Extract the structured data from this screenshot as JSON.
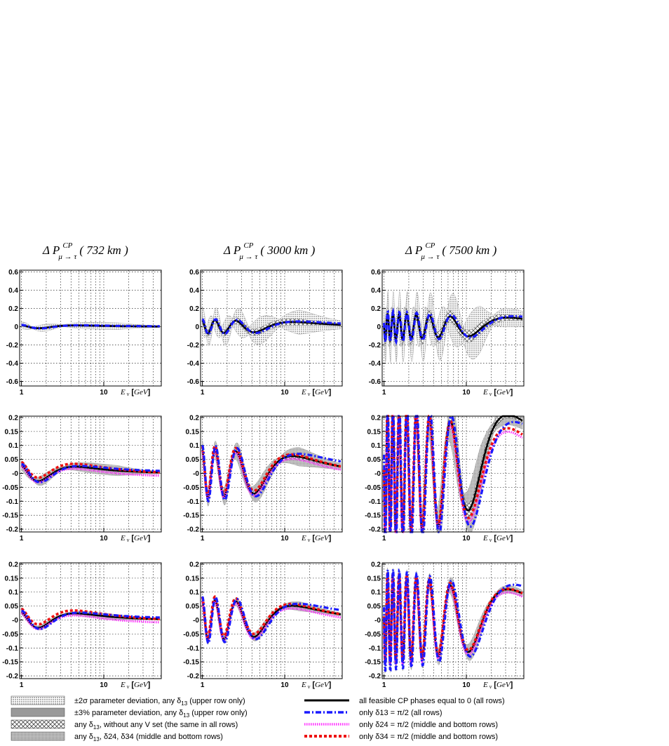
{
  "chart_data": {
    "type": "line",
    "columns": [
      {
        "baseline": "732",
        "unit": "km",
        "title_prefix": "Δ P",
        "title_sup": "CP",
        "title_sub": "μ → τ"
      },
      {
        "baseline": "3000",
        "unit": "km",
        "title_prefix": "Δ P",
        "title_sup": "CP",
        "title_sub": "μ → τ"
      },
      {
        "baseline": "7500",
        "unit": "km",
        "title_prefix": "Δ P",
        "title_sup": "CP",
        "title_sub": "μ → τ"
      }
    ],
    "rows": [
      {
        "ylim": [
          -0.65,
          0.62
        ],
        "yticks": [
          "0.6",
          "0.4",
          "0.2",
          "0",
          "-0.2",
          "-0.4",
          "-0.6"
        ],
        "ytick_values": [
          0.6,
          0.4,
          0.2,
          0,
          -0.2,
          -0.4,
          -0.6
        ]
      },
      {
        "ylim": [
          -0.21,
          0.205
        ],
        "yticks": [
          "0.2",
          "0.15",
          "0.1",
          "0.05",
          "-0",
          "-0.05",
          "-0.1",
          "-0.15",
          "-0.2"
        ],
        "ytick_values": [
          0.2,
          0.15,
          0.1,
          0.05,
          0,
          -0.05,
          -0.1,
          -0.15,
          -0.2
        ]
      },
      {
        "ylim": [
          -0.21,
          0.205
        ],
        "yticks": [
          "0.2",
          "0.15",
          "0.1",
          "0.05",
          "-0",
          "-0.05",
          "-0.1",
          "-0.15",
          "-0.2"
        ],
        "ytick_values": [
          0.2,
          0.15,
          0.1,
          0.05,
          0,
          -0.05,
          -0.1,
          -0.15,
          -0.2
        ]
      }
    ],
    "xaxis": {
      "scale": "log",
      "xlim": [
        0.95,
        50
      ],
      "tick_labels": [
        "1",
        "10"
      ],
      "tick_values": [
        1,
        10
      ],
      "label_main": "E",
      "label_sub": "ν",
      "label_unit": "GeV"
    },
    "grid": true,
    "curve_params": {
      "col_scale": [
        1.2,
        3.2,
        8.0
      ],
      "amp": [
        [
          0.012,
          0.05,
          0.1
        ],
        [
          0.02,
          0.06,
          0.16
        ],
        [
          0.02,
          0.05,
          0.11
        ]
      ],
      "band_width": [
        [
          0.03,
          0.12,
          0.22
        ],
        [
          0.015,
          0.03,
          0.08
        ],
        [
          0.008,
          0.015,
          0.03
        ]
      ]
    },
    "series": [
      {
        "name": "all feasible CP phases equal to 0 (all rows)",
        "color": "#000000",
        "style": "solid"
      },
      {
        "name": "only δ13 = π/2 (all rows)",
        "color": "#1a1aff",
        "style": "dashdot"
      },
      {
        "name": "only δ24 = π/2 (middle and bottom rows)",
        "color": "#ff33ff",
        "style": "dotted"
      },
      {
        "name": "only δ34 = π/2 (middle and bottom rows)",
        "color": "#ee1111",
        "style": "dashed"
      }
    ],
    "bands": [
      {
        "name": "±2σ parameter deviation, any δ13 (upper row only)",
        "fill": "#bdbdbd",
        "pattern": "dots"
      },
      {
        "name": "±3% parameter deviation, any δ13 (upper row only)",
        "fill": "#999999",
        "pattern": "solid"
      },
      {
        "name": "any δ13, without any V set (the same in all rows)",
        "fill": "#ffffff",
        "pattern": "crosshatch"
      },
      {
        "name": "any δ13, δ24, δ34 (middle and bottom rows)",
        "fill": "#aaaaaa",
        "pattern": "dense"
      }
    ]
  },
  "legend": {
    "left": [
      {
        "pre": "±2σ parameter deviation, any ",
        "sym": "δ",
        "sub": "13",
        "post": " (upper row only)"
      },
      {
        "pre": "±3% parameter deviation, any ",
        "sym": "δ",
        "sub": "13",
        "post": " (upper row only)"
      },
      {
        "pre": "any ",
        "sym": "δ",
        "sub": "13",
        "post": ", without any  V  set (the same in all rows)"
      },
      {
        "pre": "any ",
        "sym": "δ",
        "sub": "13",
        "post": ", δ24, δ34 (middle and bottom rows)"
      }
    ],
    "right": [
      {
        "text": "all feasible CP phases equal to 0 (all rows)"
      },
      {
        "text": "only  δ13 = π/2 (all rows)"
      },
      {
        "text": "only  δ24 = π/2 (middle and bottom rows)"
      },
      {
        "text": "only  δ34 = π/2 (middle and bottom rows)"
      }
    ]
  }
}
